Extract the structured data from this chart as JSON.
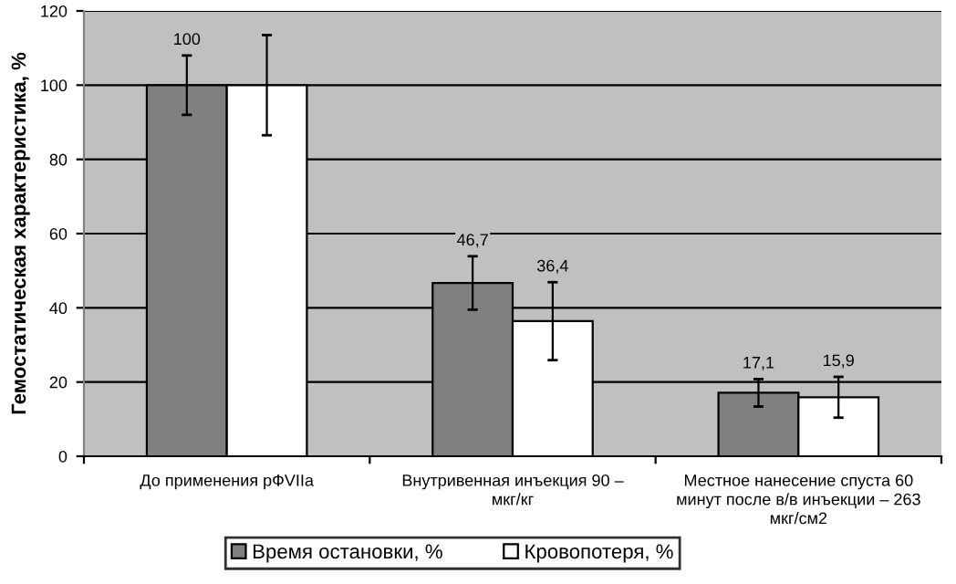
{
  "chart_data": {
    "type": "bar",
    "ylabel": "Гемостатическая характеристика, %",
    "categories": [
      "До применения рФVIIa",
      "Внутривенная инъекция 90 –\nмкг/кг",
      "Местное нанесение спуста 60\nминут после в/в инъекции – 263\nмкг/см2"
    ],
    "series": [
      {
        "name": "Время остановки, %",
        "color": "#808080",
        "values": [
          100,
          46.7,
          17.1
        ],
        "errors": [
          8,
          7.2,
          3.7
        ],
        "value_labels": [
          "100",
          "46,7",
          "17,1"
        ]
      },
      {
        "name": "Кровопотеря, %",
        "color": "#ffffff",
        "values": [
          100,
          36.4,
          15.9
        ],
        "errors": [
          13.5,
          10.5,
          5.5
        ],
        "value_labels": [
          null,
          "36,4",
          "15,9"
        ]
      }
    ],
    "ylim": [
      0,
      120
    ],
    "yticks": [
      0,
      20,
      40,
      60,
      80,
      100,
      120
    ],
    "grid": "y",
    "legend": "bottom"
  }
}
